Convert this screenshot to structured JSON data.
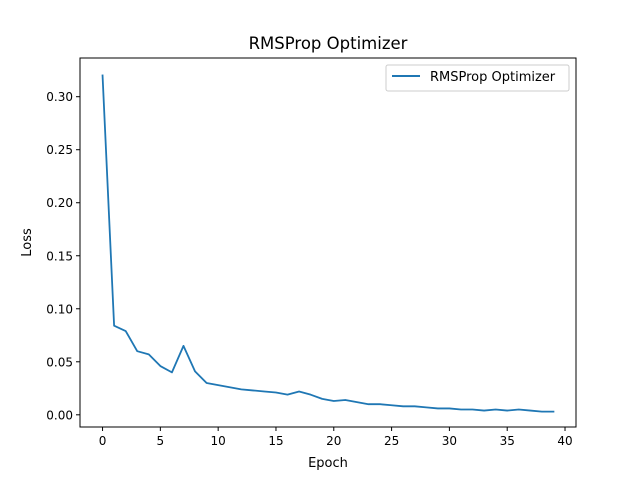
{
  "chart_data": {
    "type": "line",
    "title": "RMSProp Optimizer",
    "xlabel": "Epoch",
    "ylabel": "Loss",
    "xlim": [
      -1.95,
      40.95
    ],
    "ylim": [
      -0.0115,
      0.3365
    ],
    "xticks": [
      0,
      5,
      10,
      15,
      20,
      25,
      30,
      35,
      40
    ],
    "xtick_labels": [
      "0",
      "5",
      "10",
      "15",
      "20",
      "25",
      "30",
      "35",
      "40"
    ],
    "yticks": [
      0.0,
      0.05,
      0.1,
      0.15,
      0.2,
      0.25,
      0.3
    ],
    "ytick_labels": [
      "0.00",
      "0.05",
      "0.10",
      "0.15",
      "0.20",
      "0.25",
      "0.30"
    ],
    "grid": false,
    "legend_position": "top-right",
    "series": [
      {
        "name": "RMSProp Optimizer",
        "color": "#1f77b4",
        "x": [
          0,
          1,
          2,
          3,
          4,
          5,
          6,
          7,
          8,
          9,
          10,
          11,
          12,
          13,
          14,
          15,
          16,
          17,
          18,
          19,
          20,
          21,
          22,
          23,
          24,
          25,
          26,
          27,
          28,
          29,
          30,
          31,
          32,
          33,
          34,
          35,
          36,
          37,
          38,
          39
        ],
        "values": [
          0.32,
          0.084,
          0.079,
          0.06,
          0.057,
          0.046,
          0.04,
          0.065,
          0.041,
          0.03,
          0.028,
          0.026,
          0.024,
          0.023,
          0.022,
          0.021,
          0.019,
          0.022,
          0.019,
          0.015,
          0.013,
          0.014,
          0.012,
          0.01,
          0.01,
          0.009,
          0.008,
          0.008,
          0.007,
          0.006,
          0.006,
          0.005,
          0.005,
          0.004,
          0.005,
          0.004,
          0.005,
          0.004,
          0.003,
          0.003
        ]
      }
    ]
  }
}
